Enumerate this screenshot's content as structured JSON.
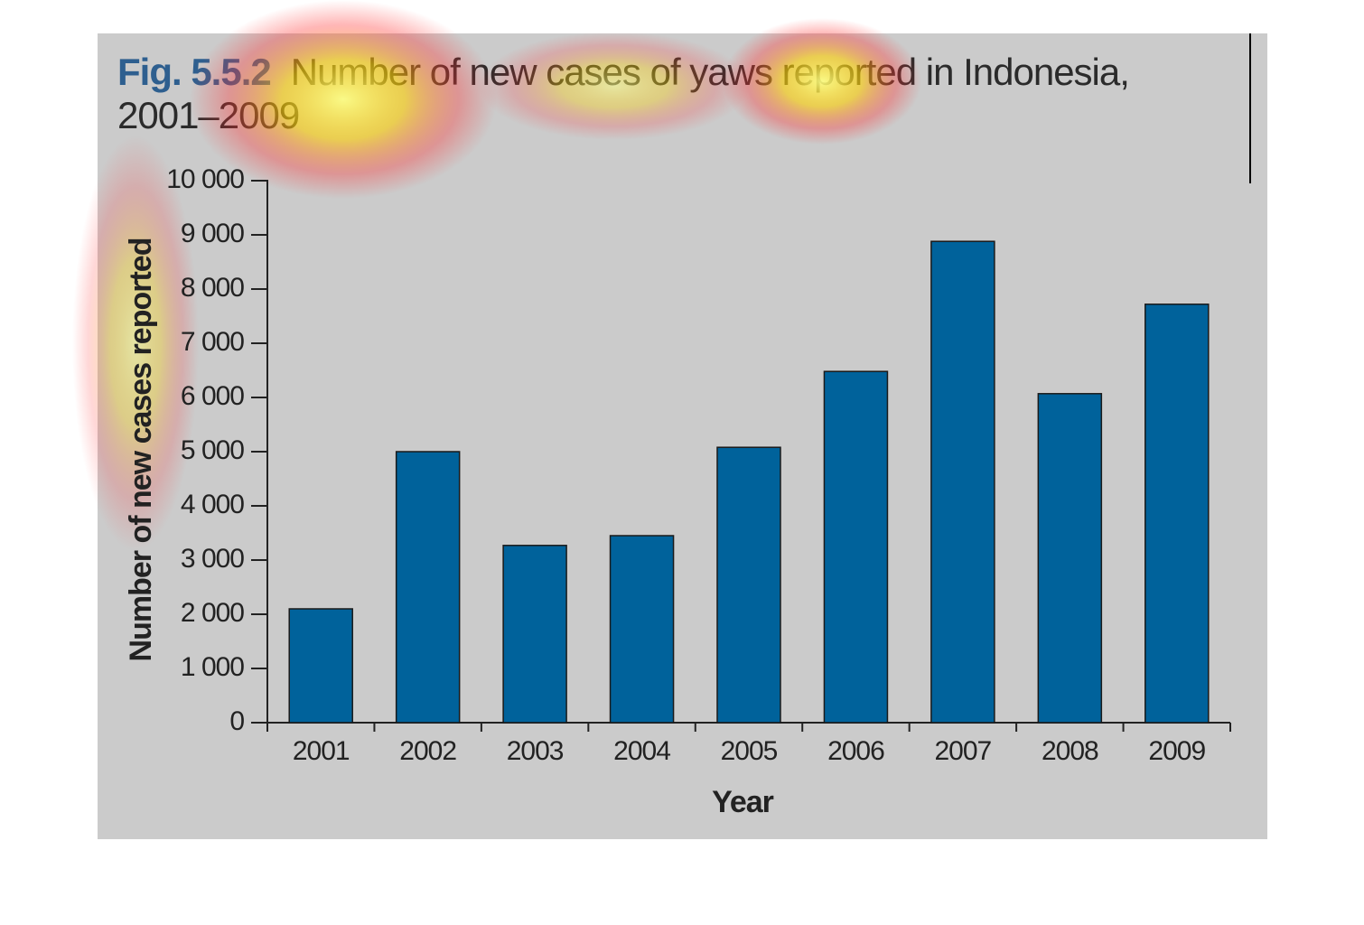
{
  "chart_data": {
    "type": "bar",
    "figure_label": "Fig. 5.5.2",
    "title": "Number of new cases of yaws reported in Indonesia, 2001–2009",
    "x_label": "Year",
    "y_label": "Number of new cases reported",
    "categories": [
      "2001",
      "2002",
      "2003",
      "2004",
      "2005",
      "2006",
      "2007",
      "2008",
      "2009"
    ],
    "values": [
      2100,
      5000,
      3270,
      3450,
      5080,
      6480,
      8880,
      6070,
      7720
    ],
    "color": "#00629b",
    "ylim": [
      0,
      10000
    ],
    "yticks": [
      0,
      {
        "value": 1000,
        "label": "1 000"
      },
      {
        "value": 2000,
        "label": "2 000"
      },
      {
        "value": 3000,
        "label": "3 000"
      },
      {
        "value": 4000,
        "label": "4 000"
      },
      {
        "value": 5000,
        "label": "5 000"
      },
      {
        "value": 6000,
        "label": "6 000"
      },
      {
        "value": 7000,
        "label": "7 000"
      },
      {
        "value": 8000,
        "label": "8 000"
      },
      {
        "value": 9000,
        "label": "9 000"
      },
      {
        "value": 10000,
        "label": "10 000"
      }
    ]
  }
}
